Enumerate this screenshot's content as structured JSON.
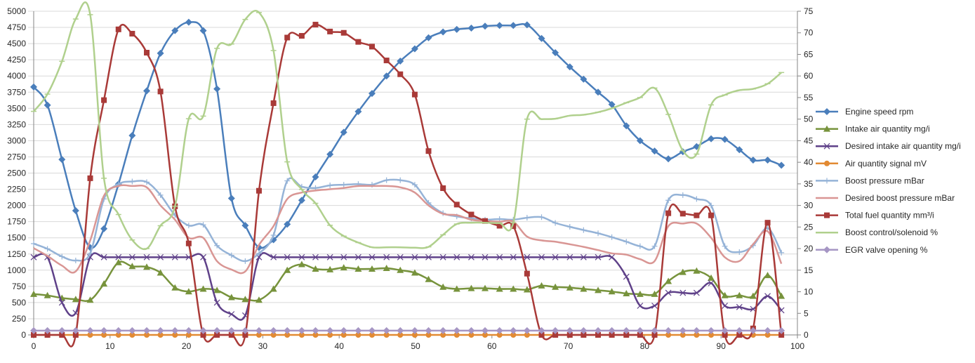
{
  "chart_data": {
    "type": "line",
    "title": "",
    "xlabel": "",
    "ylabel": "",
    "y2label": "",
    "xlim": [
      0,
      100
    ],
    "ylim": [
      0,
      5000
    ],
    "y2lim": [
      0,
      75
    ],
    "x_ticks": [
      "0",
      "10",
      "20",
      "30",
      "40",
      "50",
      "60",
      "70",
      "80",
      "90",
      "100"
    ],
    "y_ticks": [
      "0",
      "250",
      "500",
      "750",
      "1000",
      "1250",
      "1500",
      "1750",
      "2000",
      "2250",
      "2500",
      "2750",
      "3000",
      "3250",
      "3500",
      "3750",
      "4000",
      "4250",
      "4500",
      "4750",
      "5000"
    ],
    "y2_ticks": [
      "0",
      "5",
      "10",
      "15",
      "20",
      "25",
      "30",
      "35",
      "40",
      "45",
      "50",
      "55",
      "60",
      "65",
      "70",
      "75"
    ],
    "grid": "horizontal",
    "legend_position": "right",
    "x": [
      0,
      1.8,
      3.7,
      5.5,
      7.4,
      9.2,
      11.1,
      12.9,
      14.8,
      16.6,
      18.5,
      20.3,
      22.2,
      24.0,
      25.9,
      27.7,
      29.5,
      31.4,
      33.2,
      35.1,
      36.9,
      38.8,
      40.6,
      42.5,
      44.3,
      46.2,
      48.0,
      49.9,
      51.7,
      53.6,
      55.4,
      57.3,
      59.1,
      61.0,
      62.8,
      64.6,
      66.5,
      68.3,
      70.2,
      72.0,
      73.9,
      75.7,
      77.6,
      79.4,
      81.3,
      83.1,
      85.0,
      86.8,
      88.7,
      90.5,
      92.4,
      94.2,
      96.1,
      97.9
    ],
    "series": [
      {
        "name": "Engine speed rpm",
        "axis": "left",
        "color": "#4a7ebb",
        "marker": "diamond",
        "values": [
          3830,
          3550,
          2710,
          1920,
          1350,
          1640,
          2330,
          3080,
          3770,
          4350,
          4700,
          4830,
          4700,
          3800,
          2110,
          1690,
          1350,
          1470,
          1710,
          2080,
          2440,
          2790,
          3130,
          3450,
          3730,
          4000,
          4230,
          4420,
          4590,
          4680,
          4720,
          4740,
          4770,
          4780,
          4780,
          4790,
          4580,
          4360,
          4140,
          3950,
          3750,
          3560,
          3230,
          3000,
          2840,
          2720,
          2830,
          2910,
          3030,
          3020,
          2860,
          2700,
          2700,
          2620
        ]
      },
      {
        "name": "Intake air quantity mg/i",
        "axis": "left",
        "color": "#77933c",
        "marker": "triangle",
        "values": [
          630,
          610,
          570,
          550,
          540,
          790,
          1120,
          1060,
          1050,
          960,
          730,
          670,
          710,
          690,
          580,
          550,
          540,
          710,
          1000,
          1090,
          1020,
          1010,
          1040,
          1020,
          1020,
          1030,
          1000,
          960,
          860,
          740,
          710,
          720,
          720,
          710,
          710,
          700,
          760,
          740,
          730,
          710,
          690,
          670,
          640,
          630,
          630,
          830,
          970,
          990,
          880,
          610,
          610,
          600,
          920,
          600
        ]
      },
      {
        "name": "Desired intake air quantity mg/i",
        "axis": "left",
        "color": "#5f4189",
        "marker": "x",
        "values": [
          1200,
          1200,
          500,
          340,
          1200,
          1200,
          1200,
          1200,
          1200,
          1200,
          1200,
          1200,
          1200,
          500,
          320,
          300,
          1200,
          1200,
          1200,
          1200,
          1200,
          1200,
          1200,
          1200,
          1200,
          1200,
          1200,
          1200,
          1200,
          1200,
          1200,
          1200,
          1200,
          1200,
          1200,
          1200,
          1200,
          1200,
          1200,
          1200,
          1200,
          1200,
          900,
          450,
          450,
          650,
          650,
          650,
          800,
          450,
          430,
          400,
          600,
          380
        ]
      },
      {
        "name": "Air quantity signal mV",
        "axis": "left",
        "color": "#e28a33",
        "marker": "circle",
        "values": [
          0,
          0,
          0,
          0,
          0,
          0,
          0,
          0,
          0,
          0,
          0,
          0,
          0,
          0,
          0,
          0,
          0,
          0,
          0,
          0,
          0,
          0,
          0,
          0,
          0,
          0,
          0,
          0,
          0,
          0,
          0,
          0,
          0,
          0,
          0,
          0,
          0,
          0,
          0,
          0,
          0,
          0,
          0,
          0,
          0,
          0,
          0,
          0,
          0,
          0,
          0,
          0,
          0,
          0
        ]
      },
      {
        "name": "Boost pressure mBar",
        "axis": "left",
        "color": "#95b3d7",
        "marker": "plus",
        "values": [
          1410,
          1330,
          1210,
          1150,
          1260,
          2100,
          2330,
          2370,
          2360,
          2160,
          1850,
          1690,
          1700,
          1380,
          1230,
          1140,
          1260,
          1540,
          2380,
          2290,
          2270,
          2310,
          2320,
          2330,
          2320,
          2390,
          2390,
          2320,
          2040,
          1880,
          1830,
          1800,
          1780,
          1790,
          1780,
          1810,
          1820,
          1730,
          1670,
          1620,
          1570,
          1510,
          1440,
          1370,
          1370,
          2080,
          2160,
          2100,
          2000,
          1370,
          1280,
          1380,
          1650,
          1270
        ]
      },
      {
        "name": "Desired boost pressure mBar",
        "axis": "left",
        "color": "#d99694",
        "marker": "none",
        "values": [
          1340,
          1220,
          1070,
          980,
          1460,
          2150,
          2300,
          2300,
          2280,
          2000,
          1780,
          1500,
          1500,
          1140,
          1010,
          980,
          1390,
          1680,
          2100,
          2200,
          2230,
          2250,
          2270,
          2300,
          2300,
          2300,
          2280,
          2200,
          2000,
          1870,
          1850,
          1780,
          1760,
          1750,
          1750,
          1520,
          1460,
          1440,
          1400,
          1360,
          1310,
          1260,
          1240,
          1170,
          1140,
          1680,
          1720,
          1720,
          1500,
          1200,
          1140,
          1400,
          1600,
          1100
        ]
      },
      {
        "name": "Total fuel quantity mm³/i",
        "axis": "right",
        "color": "#a93a38",
        "marker": "square",
        "values": [
          0,
          0,
          0,
          0,
          36.3,
          54.4,
          70.8,
          69.8,
          65.4,
          56.4,
          29.8,
          21.2,
          0,
          0,
          0,
          0,
          33.4,
          53.7,
          68.9,
          69.3,
          71.9,
          70.3,
          70.0,
          67.9,
          66.8,
          63.6,
          60.4,
          55.7,
          42.6,
          34.0,
          30.2,
          27.9,
          26.4,
          25.3,
          25.2,
          14.2,
          0,
          0,
          0,
          0,
          0,
          0,
          0,
          0,
          0,
          28.2,
          28.1,
          27.7,
          27.7,
          0,
          0,
          1.5,
          26.0,
          0
        ]
      },
      {
        "name": "Boost control/solenoid %",
        "axis": "right",
        "color": "#b0d08d",
        "marker": "dash",
        "values": [
          51.8,
          55.8,
          63.4,
          73.2,
          74.2,
          36.3,
          27.9,
          22.0,
          20.0,
          25.3,
          29.8,
          50.1,
          50.7,
          66.4,
          67.4,
          73.1,
          74.7,
          65.9,
          40.1,
          33.7,
          30.5,
          25.4,
          22.9,
          21.4,
          20.3,
          20.3,
          20.3,
          20.2,
          20.4,
          23.2,
          25.7,
          26.0,
          26.0,
          25.9,
          26.0,
          50.0,
          50.0,
          50.1,
          50.8,
          51.0,
          51.6,
          52.5,
          53.8,
          55.0,
          57.2,
          51.1,
          42.7,
          41.9,
          53.3,
          55.6,
          56.7,
          57.0,
          58.2,
          60.8
        ]
      },
      {
        "name": "EGR valve opening %",
        "axis": "right",
        "color": "#a696c4",
        "marker": "diamond",
        "values": [
          1,
          1,
          1,
          1,
          1,
          1,
          1,
          1,
          1,
          1,
          1,
          1,
          1,
          1,
          1,
          1,
          1,
          1,
          1,
          1,
          1,
          1,
          1,
          1,
          1,
          1,
          1,
          1,
          1,
          1,
          1,
          1,
          1,
          1,
          1,
          1,
          1,
          1,
          1,
          1,
          1,
          1,
          1,
          1,
          1,
          1,
          1,
          1,
          1,
          1,
          1,
          1,
          1,
          1
        ]
      }
    ]
  }
}
